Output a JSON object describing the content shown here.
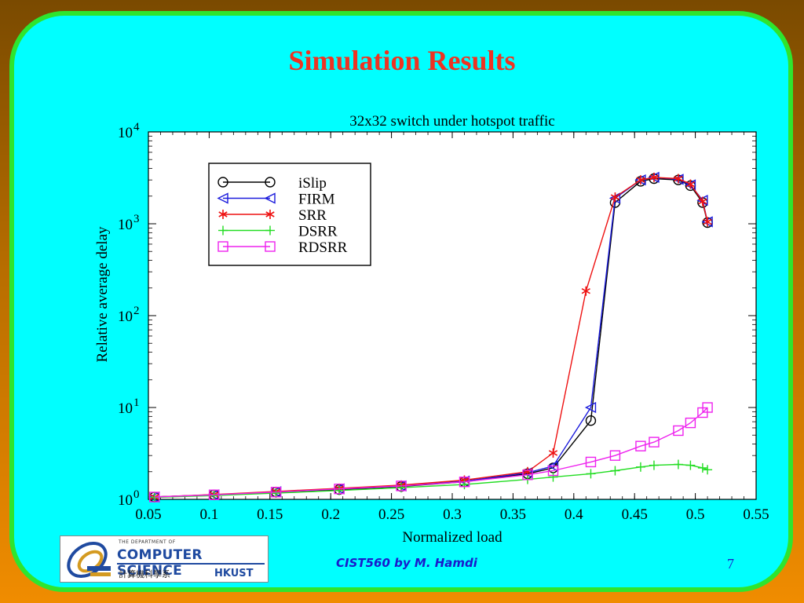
{
  "slide": {
    "title": "Simulation Results",
    "footer": "CIST560 by M. Hamdi",
    "page_number": "7",
    "logo": {
      "small_line": "THE DEPARTMENT OF",
      "big_line": "COMPUTER SCIENCE",
      "chinese_line": "計算機科學系",
      "school": "HKUST"
    }
  },
  "chart_data": {
    "type": "line",
    "title": "32x32 switch under hotspot traffic",
    "xlabel": "Normalized load",
    "ylabel": "Relative average delay",
    "xlim": [
      0.05,
      0.55
    ],
    "ylim": [
      1,
      10000
    ],
    "yscale": "log",
    "xticks": [
      "0.05",
      "0.1",
      "0.15",
      "0.2",
      "0.25",
      "0.3",
      "0.35",
      "0.4",
      "0.45",
      "0.5",
      "0.55"
    ],
    "yticks": [
      {
        "base": "10",
        "exp": "0"
      },
      {
        "base": "10",
        "exp": "1"
      },
      {
        "base": "10",
        "exp": "2"
      },
      {
        "base": "10",
        "exp": "3"
      },
      {
        "base": "10",
        "exp": "4"
      }
    ],
    "legend_position": "top-left",
    "series": [
      {
        "name": "iSlip",
        "color": "#000000",
        "marker": "circle",
        "x": [
          0.055,
          0.104,
          0.155,
          0.207,
          0.258,
          0.31,
          0.362,
          0.383,
          0.414,
          0.434,
          0.455,
          0.466,
          0.486,
          0.496,
          0.506,
          0.51
        ],
        "y": [
          1.06,
          1.12,
          1.2,
          1.28,
          1.38,
          1.55,
          1.9,
          2.2,
          7.2,
          1700,
          2900,
          3100,
          3000,
          2600,
          1700,
          1030
        ]
      },
      {
        "name": "FIRM",
        "color": "#1a1adc",
        "marker": "triangle-left",
        "x": [
          0.055,
          0.104,
          0.155,
          0.207,
          0.258,
          0.31,
          0.362,
          0.383,
          0.414,
          0.434,
          0.455,
          0.466,
          0.486,
          0.496,
          0.506,
          0.51
        ],
        "y": [
          1.06,
          1.12,
          1.21,
          1.3,
          1.4,
          1.58,
          1.95,
          2.3,
          10,
          1900,
          3000,
          3200,
          3050,
          2650,
          1800,
          1050
        ]
      },
      {
        "name": "SRR",
        "color": "#ee1111",
        "marker": "star",
        "x": [
          0.055,
          0.104,
          0.155,
          0.207,
          0.258,
          0.31,
          0.362,
          0.383,
          0.41,
          0.434,
          0.455,
          0.466,
          0.486,
          0.496,
          0.506,
          0.51
        ],
        "y": [
          1.06,
          1.13,
          1.22,
          1.32,
          1.43,
          1.62,
          2.0,
          3.2,
          185,
          1950,
          3000,
          3200,
          3100,
          2700,
          1750,
          1050
        ]
      },
      {
        "name": "DSRR",
        "color": "#22dd22",
        "marker": "plus",
        "x": [
          0.055,
          0.104,
          0.155,
          0.207,
          0.258,
          0.31,
          0.362,
          0.383,
          0.414,
          0.434,
          0.455,
          0.466,
          0.486,
          0.496,
          0.506,
          0.51
        ],
        "y": [
          1.05,
          1.1,
          1.17,
          1.25,
          1.34,
          1.45,
          1.65,
          1.75,
          1.9,
          2.05,
          2.25,
          2.35,
          2.4,
          2.35,
          2.2,
          2.1
        ]
      },
      {
        "name": "RDSRR",
        "color": "#ee22ee",
        "marker": "square",
        "x": [
          0.055,
          0.104,
          0.155,
          0.207,
          0.258,
          0.31,
          0.362,
          0.383,
          0.414,
          0.434,
          0.455,
          0.466,
          0.486,
          0.496,
          0.506,
          0.51
        ],
        "y": [
          1.06,
          1.12,
          1.2,
          1.3,
          1.4,
          1.55,
          1.85,
          2.05,
          2.55,
          3.0,
          3.8,
          4.2,
          5.6,
          6.8,
          8.8,
          10
        ]
      }
    ]
  }
}
